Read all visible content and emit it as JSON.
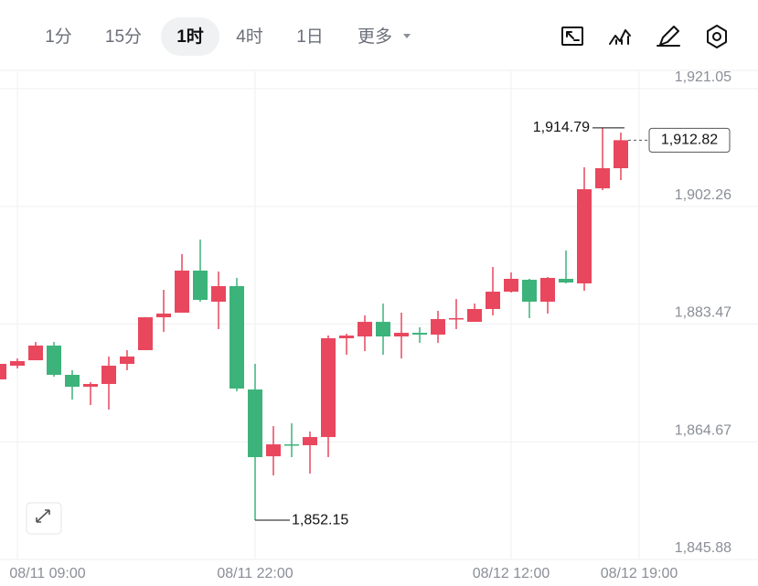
{
  "toolbar": {
    "tabs": [
      "1分",
      "15分",
      "1时",
      "4时",
      "1日",
      "更多"
    ],
    "active": 2
  },
  "chart_data": {
    "type": "candlestick",
    "categories": [
      null,
      "08/11 09:00",
      null,
      null,
      null,
      null,
      null,
      null,
      null,
      null,
      null,
      null,
      null,
      null,
      "08/11 22:00",
      null,
      null,
      null,
      null,
      null,
      null,
      null,
      null,
      null,
      null,
      null,
      null,
      null,
      "08/12 12:00",
      null,
      null,
      null,
      null,
      null,
      null,
      "08/12 19:00"
    ],
    "open": [
      1874.63,
      1876.82,
      1877.69,
      1880.03,
      1875.36,
      1873.46,
      1873.9,
      1877.11,
      1879.3,
      1884.55,
      1885.28,
      1892.0,
      1887.04,
      1889.52,
      1873.02,
      1862.36,
      1864.26,
      1864.12,
      1865.43,
      1881.2,
      1881.49,
      1883.82,
      1881.49,
      1882.07,
      1881.78,
      1884.26,
      1883.82,
      1885.87,
      1888.64,
      1890.54,
      1887.04,
      1890.69,
      1889.96,
      1905.14,
      1908.35,
      null
    ],
    "high": [
      1878.28,
      1877.98,
      1880.61,
      1880.61,
      1876.09,
      1874.19,
      1878.28,
      1879.3,
      1884.55,
      1888.93,
      1894.63,
      1896.96,
      1891.85,
      1890.83,
      1877.11,
      1867.18,
      1867.62,
      1866.31,
      1881.63,
      1881.93,
      1884.85,
      1886.74,
      1885.28,
      1882.95,
      1885.58,
      1887.47,
      1886.74,
      1892.58,
      1891.71,
      1890.69,
      1890.98,
      1895.21,
      1908.5,
      1914.79,
      1914.04,
      null
    ],
    "low": [
      1872.44,
      1876.38,
      1877.69,
      1875.06,
      1871.41,
      1870.54,
      1869.81,
      1876.09,
      1879.3,
      1882.22,
      1885.28,
      1887.04,
      1882.66,
      1872.73,
      1852.15,
      1859.3,
      1862.22,
      1859.59,
      1862.22,
      1878.57,
      1879.15,
      1878.57,
      1877.98,
      1880.47,
      1880.47,
      1882.66,
      1883.82,
      1884.85,
      1888.5,
      1884.41,
      1885.14,
      1889.96,
      1888.79,
      1904.85,
      1906.45,
      null
    ],
    "close": [
      1877.11,
      1877.55,
      1880.03,
      1875.36,
      1873.46,
      1873.9,
      1876.82,
      1878.28,
      1884.55,
      1885.14,
      1892.0,
      1887.33,
      1889.52,
      1873.17,
      1862.22,
      1864.26,
      1864.12,
      1865.43,
      1881.2,
      1881.63,
      1883.82,
      1881.49,
      1882.07,
      1881.78,
      1884.26,
      1884.41,
      1885.87,
      1888.64,
      1890.69,
      1887.04,
      1890.83,
      1890.1,
      1904.99,
      1908.35,
      1912.82,
      null
    ],
    "up_color": "#e8475d",
    "down_color": "#3cb37a",
    "ylim": [
      1845.88,
      1923.82
    ],
    "yticks": [
      {
        "value": 1921.05,
        "label": "1,921.05"
      },
      {
        "value": 1902.26,
        "label": "1,902.26"
      },
      {
        "value": 1883.47,
        "label": "1,883.47"
      },
      {
        "value": 1864.67,
        "label": "1,864.67"
      },
      {
        "value": 1845.88,
        "label": "1,845.88"
      }
    ],
    "grid": true,
    "max_label": "1,914.79",
    "min_label": "1,852.15",
    "last_label": "1,912.82"
  }
}
